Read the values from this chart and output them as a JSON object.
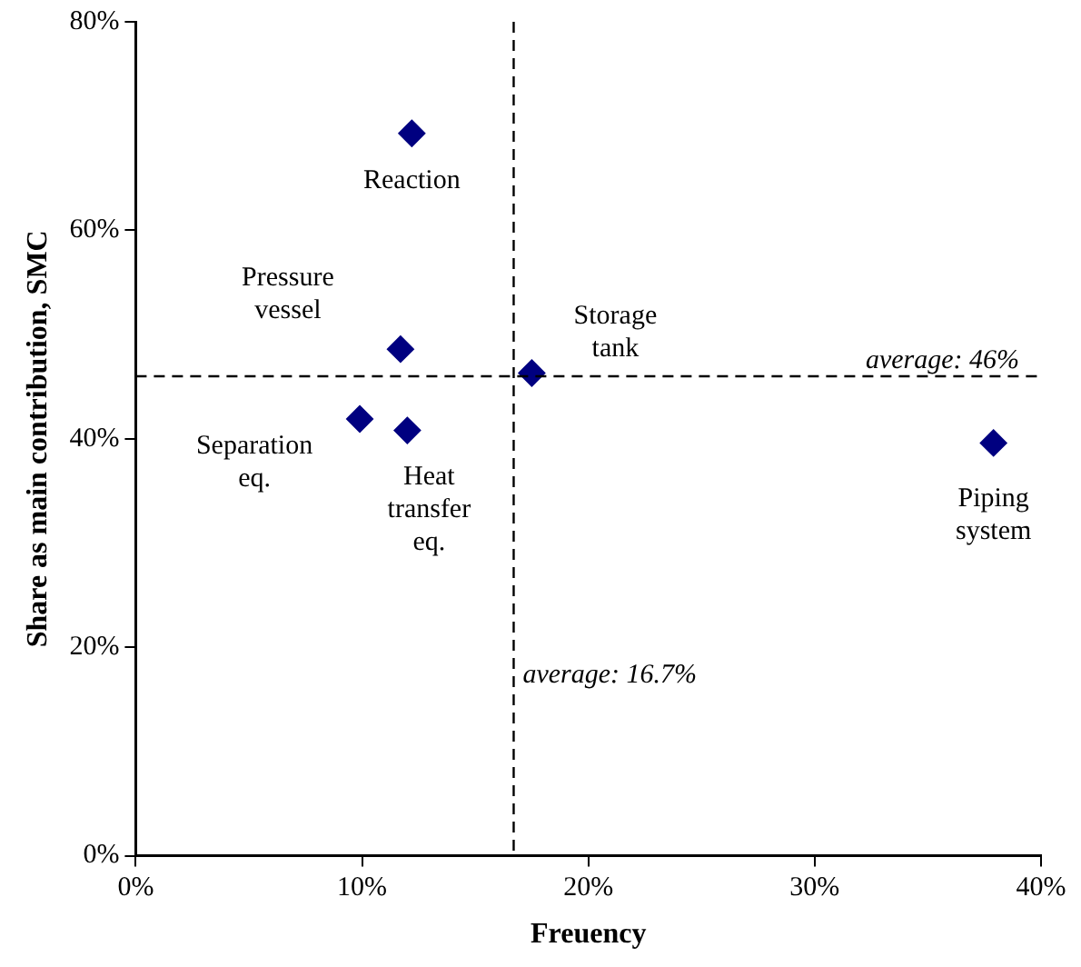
{
  "chart_data": {
    "type": "scatter",
    "xlabel": "Freuency",
    "ylabel": "Share as main contribution, SMC",
    "x": [
      12.2,
      11.7,
      17.5,
      9.9,
      12.0,
      37.9
    ],
    "values": [
      69.3,
      48.6,
      46.3,
      41.9,
      40.8,
      39.6
    ],
    "color": "#000080",
    "marker": "diamond",
    "grid": false,
    "legend": false,
    "xlim": [
      0,
      40
    ],
    "xticks": [
      {
        "value": 0,
        "label": "0%"
      },
      {
        "value": 10,
        "label": "10%"
      },
      {
        "value": 20,
        "label": "20%"
      },
      {
        "value": 30,
        "label": "30%"
      },
      {
        "value": 40,
        "label": "40%"
      }
    ],
    "ylim": [
      0,
      80
    ],
    "yticks": [
      {
        "value": 0,
        "label": "0%"
      },
      {
        "value": 20,
        "label": "20%"
      },
      {
        "value": 40,
        "label": "40%"
      },
      {
        "value": 60,
        "label": "60%"
      },
      {
        "value": 80,
        "label": "80%"
      }
    ],
    "ref_lines": [
      {
        "axis": "y",
        "value": 46,
        "label": "average: 46%",
        "line_style": "dashed"
      },
      {
        "axis": "x",
        "value": 16.7,
        "label": "average: 16.7%",
        "line_style": "dashed"
      }
    ],
    "annotations": [
      {
        "text": "Reaction",
        "x": 12.2,
        "y": 69.3
      },
      {
        "text": "Pressure\nvessel",
        "x": 11.7,
        "y": 48.6
      },
      {
        "text": "Storage\ntank",
        "x": 17.5,
        "y": 46.3
      },
      {
        "text": "Separation\neq.",
        "x": 9.9,
        "y": 41.9
      },
      {
        "text": "Heat\ntransfer\neq.",
        "x": 12.0,
        "y": 40.8
      },
      {
        "text": "Piping\nsystem",
        "x": 37.9,
        "y": 39.6
      }
    ]
  }
}
